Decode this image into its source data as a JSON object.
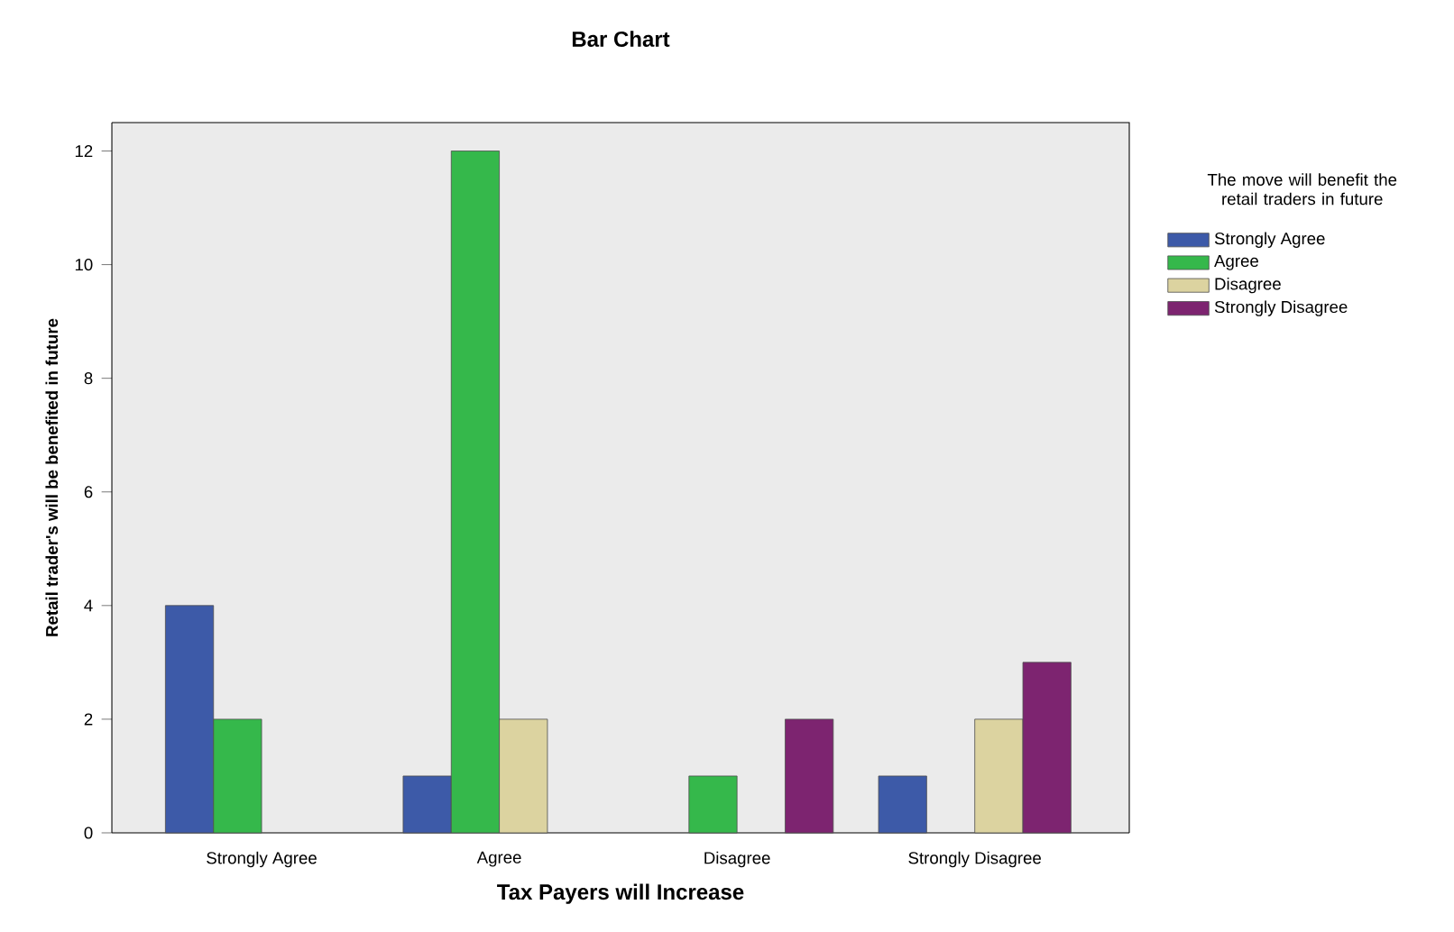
{
  "chart_data": {
    "type": "bar",
    "title": "Bar Chart",
    "xlabel": "Tax Payers will Increase",
    "ylabel": "Retail trader's will be benefited in future",
    "legend_title": "The move will benefit the retail traders in future",
    "categories": [
      "Strongly Agree",
      "Agree",
      "Disagree",
      "Strongly Disagree"
    ],
    "series": [
      {
        "name": "Strongly Agree",
        "color": "#3d5aa8",
        "values": [
          4,
          1,
          null,
          1
        ]
      },
      {
        "name": "Agree",
        "color": "#35b84b",
        "values": [
          2,
          12,
          1,
          null
        ]
      },
      {
        "name": "Disagree",
        "color": "#dcd3a0",
        "values": [
          null,
          2,
          null,
          2
        ]
      },
      {
        "name": "Strongly Disagree",
        "color": "#7d2470",
        "values": [
          null,
          null,
          2,
          3
        ]
      }
    ],
    "ylim": [
      0,
      12.5
    ],
    "yticks": [
      0,
      2,
      4,
      6,
      8,
      10,
      12
    ],
    "grid": false,
    "legend": "right"
  }
}
